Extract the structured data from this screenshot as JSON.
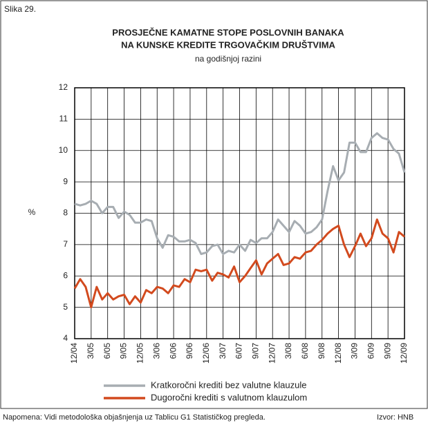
{
  "chart_data": {
    "type": "line",
    "figure_label": "Slika 29.",
    "title_lines": [
      "PROSJEČNE KAMATNE STOPE POSLOVNIH BANAKA",
      "NA KUNSKE KREDITE TRGOVAČKIM DRUŠTVIMA"
    ],
    "subtitle": "na godišnjoj razini",
    "y_label": "%",
    "categories": [
      "12/04",
      null,
      null,
      "3/05",
      null,
      null,
      "6/05",
      null,
      null,
      "9/05",
      null,
      null,
      "12/05",
      null,
      null,
      "3/06",
      null,
      null,
      "6/06",
      null,
      null,
      "9/06",
      null,
      null,
      "12/06",
      null,
      null,
      "3/07",
      null,
      null,
      "6/07",
      null,
      null,
      "9/07",
      null,
      null,
      "12/07",
      null,
      null,
      "3/08",
      null,
      null,
      "6/08",
      null,
      null,
      "9/08",
      null,
      null,
      "12/08",
      null,
      null,
      "3/09",
      null,
      null,
      "6/09",
      null,
      null,
      "9/09",
      null,
      null,
      "12/09"
    ],
    "series": [
      {
        "name": "Kratkoročni krediti bez valutne klauzule",
        "color": "#a7adb2",
        "values": [
          8.3,
          8.25,
          8.3,
          8.4,
          8.3,
          8.0,
          8.2,
          8.2,
          7.85,
          8.05,
          7.95,
          7.7,
          7.7,
          7.8,
          7.75,
          7.2,
          6.9,
          7.3,
          7.25,
          7.1,
          7.1,
          7.15,
          7.05,
          6.7,
          6.75,
          6.95,
          7.0,
          6.7,
          6.8,
          6.75,
          7.0,
          6.8,
          7.15,
          7.05,
          7.2,
          7.2,
          7.4,
          7.8,
          7.6,
          7.4,
          7.75,
          7.6,
          7.35,
          7.4,
          7.55,
          7.8,
          8.7,
          9.5,
          9.05,
          9.3,
          10.25,
          10.25,
          9.95,
          9.95,
          10.4,
          10.55,
          10.4,
          10.35,
          10.05,
          9.9,
          9.3
        ]
      },
      {
        "name": "Dugoročni krediti s valutnom klauzulom",
        "color": "#d24a1e",
        "values": [
          5.6,
          5.9,
          5.65,
          5.0,
          5.65,
          5.25,
          5.45,
          5.25,
          5.35,
          5.4,
          5.1,
          5.35,
          5.15,
          5.55,
          5.45,
          5.65,
          5.6,
          5.45,
          5.7,
          5.65,
          5.9,
          5.8,
          6.2,
          6.15,
          6.2,
          5.85,
          6.1,
          6.05,
          5.95,
          6.3,
          5.8,
          6.0,
          6.25,
          6.5,
          6.05,
          6.4,
          6.55,
          6.7,
          6.35,
          6.4,
          6.6,
          6.55,
          6.75,
          6.8,
          7.0,
          7.15,
          7.35,
          7.5,
          7.6,
          7.0,
          6.6,
          6.95,
          7.35,
          6.95,
          7.2,
          7.8,
          7.35,
          7.2,
          6.75,
          7.4,
          7.25
        ]
      }
    ],
    "ylim": [
      4,
      12
    ],
    "yticks": [
      4,
      5,
      6,
      7,
      8,
      9,
      10,
      11,
      12
    ],
    "grid": true,
    "note": "Napomena: Vidi metodološka objašnjenja uz Tablicu G1 Statističkog pregleda.",
    "source": "Izvor: HNB"
  }
}
